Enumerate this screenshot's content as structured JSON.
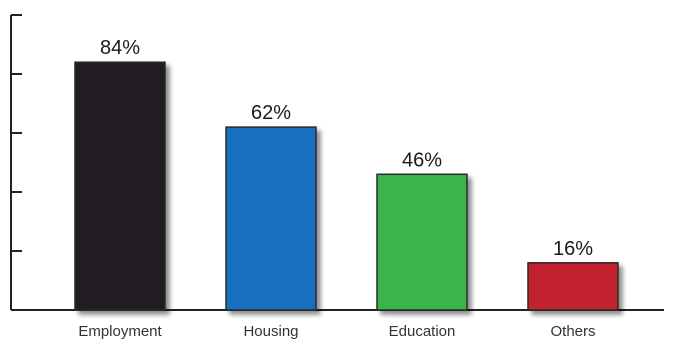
{
  "chart_data": {
    "type": "bar",
    "title": "",
    "xlabel": "",
    "ylabel": "",
    "categories": [
      "Employment",
      "Housing",
      "Education",
      "Others"
    ],
    "values": [
      84,
      62,
      46,
      16
    ],
    "value_labels": [
      "84%",
      "62%",
      "46%",
      "16%"
    ],
    "colors": [
      "#231f20",
      "#1370bf",
      "#3bb54a",
      "#c1202d"
    ],
    "ylim": [
      0,
      100
    ],
    "y_tick_count": 5,
    "grid": false,
    "legend": "none"
  }
}
